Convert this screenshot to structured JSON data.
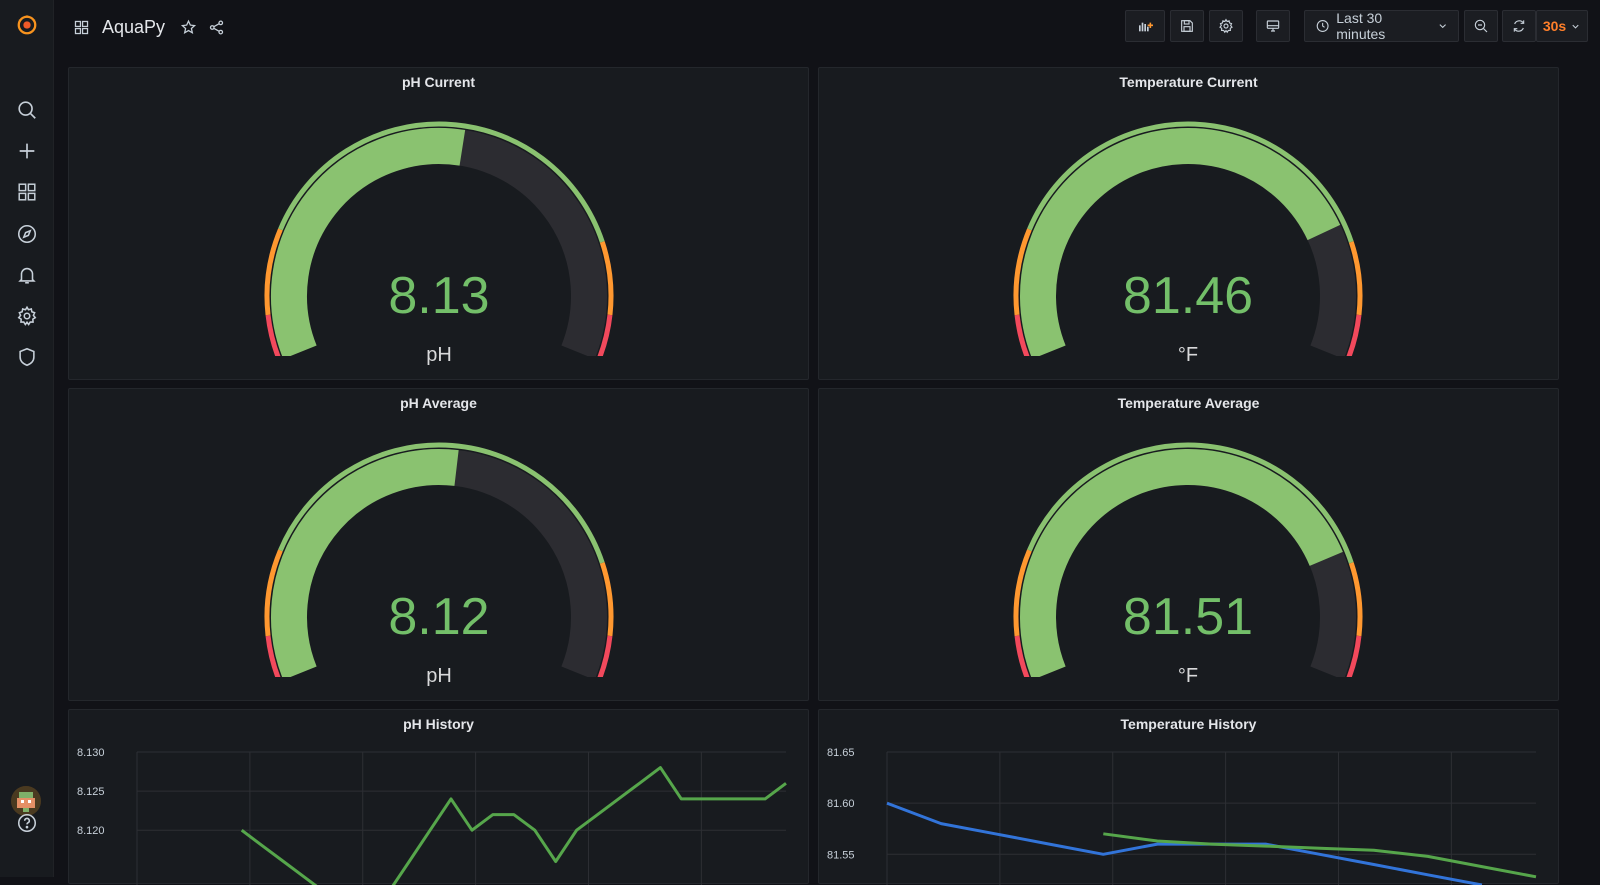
{
  "app": {
    "name": "Grafana"
  },
  "header": {
    "title": "AquaPy",
    "time_range": "Last 30 minutes",
    "refresh_interval": "30s"
  },
  "sidebar": {
    "items": [
      {
        "icon": "search-icon"
      },
      {
        "icon": "plus-icon"
      },
      {
        "icon": "dashboards-icon"
      },
      {
        "icon": "explore-compass-icon"
      },
      {
        "icon": "bell-icon"
      },
      {
        "icon": "gear-icon"
      },
      {
        "icon": "shield-icon"
      }
    ],
    "bottom": [
      {
        "icon": "user-avatar"
      },
      {
        "icon": "help-icon"
      }
    ]
  },
  "colors": {
    "green": "#73bf69",
    "gauge_green": "#8ac270",
    "orange": "#ff9830",
    "red": "#f2495c",
    "track": "#2c2c31",
    "blue": "#3274d9",
    "line_green": "#56a64b",
    "accent": "#ff7f2a"
  },
  "panels": {
    "ph_current": {
      "title": "pH Current",
      "value": "8.13",
      "unit": "pH",
      "fraction": 0.54
    },
    "temp_current": {
      "title": "Temperature Current",
      "value": "81.46",
      "unit": "°F",
      "fraction": 0.79
    },
    "ph_average": {
      "title": "pH Average",
      "value": "8.12",
      "unit": "pH",
      "fraction": 0.53
    },
    "temp_average": {
      "title": "Temperature Average",
      "value": "81.51",
      "unit": "°F",
      "fraction": 0.8
    },
    "ph_history": {
      "title": "pH History"
    },
    "temp_history": {
      "title": "Temperature History"
    }
  },
  "chart_data": [
    {
      "type": "line",
      "title": "pH History",
      "y_ticks": [
        "8.130",
        "8.125",
        "8.120"
      ],
      "ylim": [
        8.113,
        8.13
      ],
      "grid": true,
      "series": [
        {
          "color": "#56a64b",
          "values": [
            null,
            null,
            null,
            null,
            null,
            8.12,
            8.118,
            8.116,
            8.114,
            8.112,
            8.112,
            8.112,
            8.112,
            8.116,
            8.12,
            8.124,
            8.12,
            8.122,
            8.122,
            8.12,
            8.116,
            8.12,
            8.122,
            8.124,
            8.126,
            8.128,
            8.124,
            8.124,
            8.124,
            8.124,
            8.124,
            8.126
          ]
        }
      ]
    },
    {
      "type": "line",
      "title": "Temperature History",
      "y_ticks": [
        "81.65",
        "81.60",
        "81.55"
      ],
      "ylim": [
        81.52,
        81.65
      ],
      "grid": true,
      "series": [
        {
          "color": "#3274d9",
          "values": [
            81.6,
            81.58,
            81.57,
            81.56,
            81.55,
            81.56,
            81.56,
            81.56,
            81.55,
            81.54,
            81.53,
            81.52
          ]
        },
        {
          "color": "#56a64b",
          "values": [
            null,
            null,
            null,
            null,
            81.57,
            81.563,
            81.56,
            81.558,
            81.556,
            81.554,
            81.548,
            81.538,
            81.528
          ]
        }
      ]
    }
  ]
}
